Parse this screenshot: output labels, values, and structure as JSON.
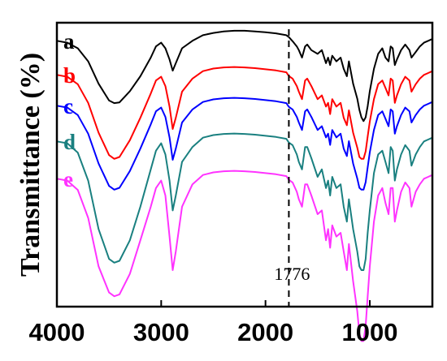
{
  "chart_data": {
    "type": "line",
    "title": "",
    "xlabel": "",
    "ylabel": "Transmittance (%)",
    "xlim": [
      4000,
      400
    ],
    "x_reversed": true,
    "xticks": [
      4000,
      3000,
      2000,
      1000
    ],
    "xtick_labels": [
      "4000",
      "3000",
      "2000",
      "1000"
    ],
    "y_ticks_shown": false,
    "grid": false,
    "legend": "inline-left",
    "annotation": {
      "x": 1776,
      "label": "1776",
      "style": "dashed-vertical"
    },
    "series": [
      {
        "name": "a",
        "color": "#000000",
        "x": [
          4000,
          3900,
          3800,
          3700,
          3600,
          3500,
          3450,
          3400,
          3300,
          3200,
          3100,
          3050,
          3000,
          2960,
          2920,
          2890,
          2860,
          2800,
          2700,
          2600,
          2500,
          2400,
          2300,
          2200,
          2100,
          2000,
          1900,
          1800,
          1776,
          1740,
          1700,
          1680,
          1650,
          1620,
          1600,
          1560,
          1500,
          1460,
          1420,
          1400,
          1380,
          1360,
          1320,
          1280,
          1250,
          1220,
          1200,
          1160,
          1120,
          1100,
          1080,
          1060,
          1040,
          1020,
          1000,
          960,
          920,
          880,
          850,
          820,
          800,
          780,
          760,
          740,
          700,
          660,
          620,
          600,
          560,
          520,
          480,
          440,
          400
        ],
        "y": [
          0.5,
          1.0,
          2.5,
          6.0,
          12.0,
          16.5,
          17.2,
          17.0,
          14.0,
          10.0,
          5.0,
          2.0,
          1.0,
          2.5,
          5.5,
          8.5,
          6.5,
          2.5,
          0.5,
          -1.0,
          -1.6,
          -2.0,
          -2.2,
          -2.2,
          -2.0,
          -1.8,
          -1.5,
          -1.0,
          -0.5,
          0.6,
          2.0,
          3.0,
          5.0,
          2.0,
          1.5,
          3.0,
          4.0,
          3.0,
          6.5,
          5.0,
          7.0,
          4.5,
          6.0,
          5.0,
          8.0,
          10.0,
          6.0,
          12.0,
          16.0,
          19.0,
          21.0,
          22.0,
          21.0,
          18.0,
          14.0,
          8.0,
          4.0,
          2.5,
          5.0,
          6.0,
          2.0,
          2.5,
          7.0,
          5.5,
          3.0,
          1.5,
          3.0,
          5.0,
          3.5,
          2.0,
          1.0,
          0.5,
          0.0
        ]
      },
      {
        "name": "b",
        "color": "#ff0000",
        "x": [
          4000,
          3900,
          3800,
          3700,
          3600,
          3500,
          3450,
          3400,
          3300,
          3200,
          3100,
          3050,
          3000,
          2960,
          2920,
          2890,
          2860,
          2800,
          2700,
          2600,
          2500,
          2400,
          2300,
          2200,
          2100,
          2000,
          1900,
          1800,
          1776,
          1740,
          1700,
          1680,
          1650,
          1620,
          1600,
          1560,
          1500,
          1460,
          1420,
          1400,
          1380,
          1360,
          1320,
          1280,
          1250,
          1220,
          1200,
          1160,
          1120,
          1100,
          1080,
          1060,
          1040,
          1020,
          1000,
          960,
          920,
          880,
          850,
          820,
          800,
          780,
          760,
          740,
          700,
          660,
          620,
          600,
          560,
          520,
          480,
          440,
          400
        ],
        "y": [
          0.5,
          1.0,
          3.0,
          8.0,
          16.0,
          22.0,
          23.0,
          22.5,
          18.0,
          12.0,
          5.5,
          2.0,
          1.0,
          3.5,
          9.0,
          15.0,
          12.0,
          5.0,
          1.5,
          -0.5,
          -1.2,
          -1.5,
          -1.6,
          -1.5,
          -1.3,
          -1.0,
          -0.7,
          -0.2,
          0.8,
          1.5,
          3.5,
          5.0,
          7.0,
          2.0,
          1.5,
          3.5,
          7.0,
          6.0,
          9.0,
          8.0,
          11.0,
          7.0,
          9.0,
          8.0,
          12.0,
          14.0,
          10.0,
          16.0,
          20.0,
          22.5,
          23.0,
          23.0,
          21.0,
          17.0,
          13.0,
          7.0,
          3.0,
          2.0,
          4.0,
          6.0,
          1.5,
          2.0,
          8.0,
          6.0,
          3.0,
          1.0,
          2.0,
          5.0,
          3.0,
          1.5,
          0.5,
          0.0,
          -0.5
        ]
      },
      {
        "name": "c",
        "color": "#0000ff",
        "x": [
          4000,
          3900,
          3800,
          3700,
          3600,
          3500,
          3450,
          3400,
          3300,
          3200,
          3100,
          3050,
          3000,
          2960,
          2920,
          2890,
          2860,
          2800,
          2700,
          2600,
          2500,
          2400,
          2300,
          2200,
          2100,
          2000,
          1900,
          1800,
          1776,
          1740,
          1700,
          1680,
          1650,
          1620,
          1600,
          1560,
          1500,
          1460,
          1420,
          1400,
          1380,
          1360,
          1320,
          1280,
          1250,
          1220,
          1200,
          1160,
          1120,
          1100,
          1080,
          1060,
          1040,
          1020,
          1000,
          960,
          920,
          880,
          850,
          820,
          800,
          780,
          760,
          740,
          700,
          660,
          620,
          600,
          560,
          520,
          480,
          440,
          400
        ],
        "y": [
          0.5,
          1.0,
          3.0,
          8.0,
          16.0,
          22.0,
          23.0,
          22.5,
          18.0,
          12.0,
          5.5,
          2.0,
          1.0,
          3.5,
          9.0,
          15.0,
          12.0,
          5.0,
          1.5,
          -0.5,
          -1.2,
          -1.5,
          -1.6,
          -1.5,
          -1.3,
          -1.0,
          -0.7,
          -0.2,
          0.8,
          1.5,
          3.5,
          5.0,
          7.0,
          2.0,
          1.5,
          3.5,
          7.0,
          6.0,
          9.0,
          8.0,
          11.0,
          7.0,
          9.0,
          8.0,
          12.0,
          14.0,
          10.0,
          16.0,
          20.0,
          22.5,
          23.0,
          23.0,
          21.0,
          17.0,
          13.0,
          7.0,
          3.0,
          2.0,
          4.0,
          6.0,
          1.5,
          2.0,
          8.0,
          6.0,
          3.0,
          1.0,
          2.0,
          5.0,
          3.0,
          1.5,
          0.5,
          0.0,
          -0.5
        ]
      },
      {
        "name": "d",
        "color": "#1a8080",
        "x": [
          4000,
          3900,
          3800,
          3700,
          3600,
          3500,
          3450,
          3400,
          3300,
          3200,
          3100,
          3050,
          3000,
          2960,
          2920,
          2890,
          2860,
          2800,
          2700,
          2600,
          2500,
          2400,
          2300,
          2200,
          2100,
          2000,
          1900,
          1800,
          1776,
          1740,
          1700,
          1680,
          1650,
          1620,
          1600,
          1560,
          1500,
          1460,
          1420,
          1400,
          1380,
          1360,
          1320,
          1280,
          1250,
          1220,
          1200,
          1160,
          1120,
          1100,
          1080,
          1060,
          1040,
          1020,
          1000,
          960,
          920,
          880,
          850,
          820,
          800,
          780,
          760,
          740,
          700,
          660,
          620,
          600,
          560,
          520,
          480,
          440,
          400
        ],
        "y": [
          0.5,
          1.0,
          3.5,
          11.0,
          24.0,
          32.0,
          33.0,
          32.5,
          27.0,
          18.0,
          8.0,
          3.0,
          1.0,
          4.0,
          11.0,
          19.0,
          15.0,
          6.0,
          2.0,
          -0.5,
          -1.2,
          -1.5,
          -1.6,
          -1.5,
          -1.3,
          -1.0,
          -0.7,
          -0.2,
          0.8,
          1.5,
          4.0,
          6.0,
          8.0,
          2.0,
          2.0,
          5.0,
          10.0,
          8.0,
          13.0,
          11.0,
          15.0,
          10.0,
          13.0,
          12.0,
          18.0,
          22.0,
          16.0,
          24.0,
          30.0,
          34.0,
          35.0,
          35.0,
          32.0,
          25.0,
          19.0,
          9.0,
          4.0,
          3.0,
          6.0,
          9.0,
          2.0,
          3.0,
          11.0,
          8.0,
          4.0,
          1.5,
          3.0,
          7.0,
          4.0,
          2.0,
          0.5,
          0.0,
          -0.5
        ]
      },
      {
        "name": "e",
        "color": "#ff33ff",
        "x": [
          4000,
          3900,
          3800,
          3700,
          3600,
          3500,
          3450,
          3400,
          3300,
          3200,
          3100,
          3050,
          3000,
          2960,
          2920,
          2890,
          2860,
          2800,
          2700,
          2600,
          2500,
          2400,
          2300,
          2200,
          2100,
          2000,
          1900,
          1800,
          1776,
          1740,
          1700,
          1680,
          1650,
          1620,
          1600,
          1560,
          1500,
          1460,
          1420,
          1400,
          1380,
          1360,
          1320,
          1280,
          1250,
          1220,
          1200,
          1160,
          1120,
          1100,
          1080,
          1060,
          1040,
          1020,
          1000,
          960,
          920,
          880,
          850,
          820,
          800,
          780,
          760,
          740,
          700,
          660,
          620,
          600,
          560,
          520,
          480,
          440,
          400
        ],
        "y": [
          0.5,
          1.0,
          3.5,
          11.0,
          24.0,
          31.0,
          32.0,
          31.5,
          26.0,
          17.0,
          8.0,
          3.0,
          1.0,
          5.0,
          16.0,
          25.0,
          20.0,
          8.0,
          2.0,
          -0.5,
          -1.2,
          -1.5,
          -1.6,
          -1.5,
          -1.3,
          -1.0,
          -0.7,
          -0.2,
          0.8,
          1.5,
          4.0,
          6.0,
          8.0,
          2.0,
          2.0,
          5.0,
          10.0,
          9.0,
          17.0,
          14.0,
          19.0,
          13.0,
          16.0,
          15.0,
          20.0,
          25.0,
          18.0,
          28.0,
          36.0,
          42.0,
          44.0,
          44.0,
          40.0,
          32.0,
          24.0,
          12.0,
          5.0,
          3.0,
          7.0,
          10.0,
          3.0,
          3.0,
          12.0,
          9.0,
          4.0,
          1.5,
          3.0,
          8.0,
          4.0,
          2.0,
          0.5,
          0.0,
          -0.5
        ]
      }
    ]
  }
}
